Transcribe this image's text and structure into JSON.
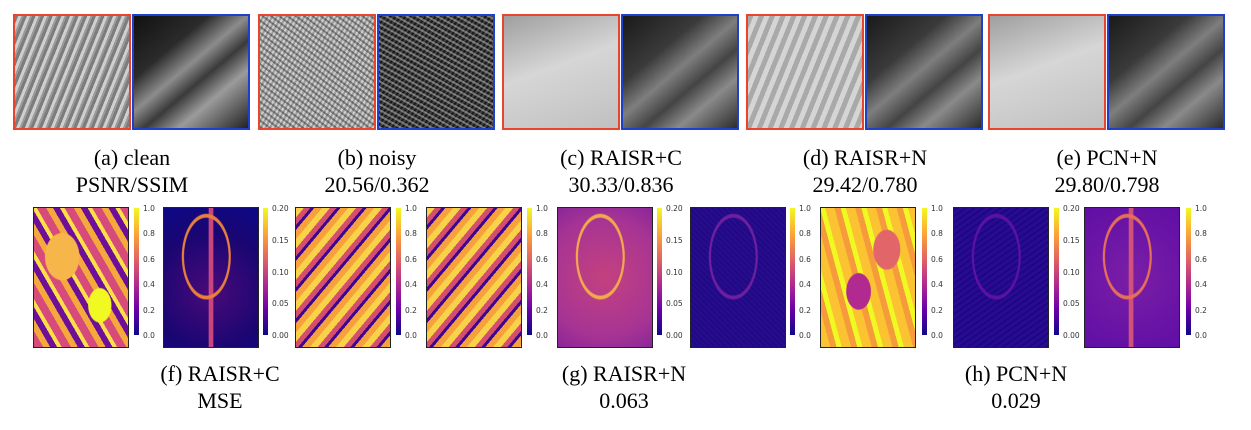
{
  "crops": [
    {
      "label": "(a) clean",
      "metric": "PSNR/SSIM",
      "left_texture": "feather",
      "right_texture": "dark-edge"
    },
    {
      "label": "(b) noisy",
      "metric": "20.56/0.362",
      "left_texture": "noise-light",
      "right_texture": "noise-dark"
    },
    {
      "label": "(c) RAISR+C",
      "metric": "30.33/0.836",
      "left_texture": "feather-soft",
      "right_texture": "dark-edge-soft"
    },
    {
      "label": "(d) RAISR+N",
      "metric": "29.42/0.780",
      "left_texture": "feather-mid",
      "right_texture": "dark-edge-soft"
    },
    {
      "label": "(e) PCN+N",
      "metric": "29.80/0.798",
      "left_texture": "feather-soft",
      "right_texture": "dark-edge-soft"
    }
  ],
  "colors": {
    "crop_left_border": "#e8442e",
    "crop_right_border": "#1f3fc9",
    "colormap": "plasma"
  },
  "heatmap_groups": [
    {
      "label": "(f) RAISR+C",
      "value": "MSE"
    },
    {
      "label": "(g) RAISR+N",
      "value": "0.063"
    },
    {
      "label": "(h) PCN+N",
      "value": "0.029"
    }
  ],
  "colorbar_ticks": {
    "unit": [
      "1.0",
      "0.8",
      "0.6",
      "0.4",
      "0.2",
      "0.0"
    ],
    "error": [
      "0.20",
      "0.15",
      "0.10",
      "0.05",
      "0.00"
    ]
  }
}
